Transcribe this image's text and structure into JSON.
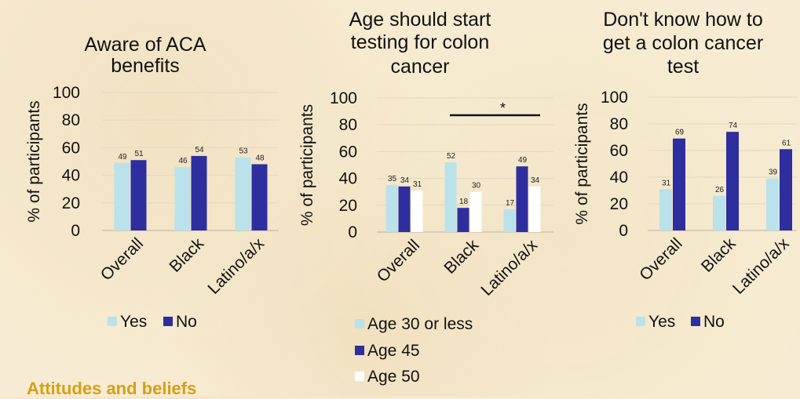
{
  "colors": {
    "yes": "#b9e2ea",
    "no": "#2e2e9f",
    "age30": "#b9e2ea",
    "age45": "#2e2e9f",
    "age50": "#ffffff",
    "background": "#f7ecd3",
    "heading": "#d4a017"
  },
  "section_heading": "Attitudes and beliefs",
  "chart_data": [
    {
      "type": "bar",
      "title": "Aware of ACA benefits",
      "ylabel": "% of participants",
      "ylim": [
        0,
        100
      ],
      "yticks": [
        "0",
        "20",
        "40",
        "60",
        "80",
        "100"
      ],
      "categories": [
        "Overall",
        "Black",
        "Latino/a/x"
      ],
      "series": [
        {
          "name": "Yes",
          "color": "#b9e2ea",
          "values": [
            49,
            46,
            53
          ]
        },
        {
          "name": "No",
          "color": "#2e2e9f",
          "values": [
            51,
            54,
            48
          ]
        }
      ],
      "legend_position": "bottom"
    },
    {
      "type": "bar",
      "title": "Age should start testing for colon cancer",
      "ylabel": "% of participants",
      "ylim": [
        0,
        100
      ],
      "yticks": [
        "0",
        "20",
        "40",
        "60",
        "80",
        "100"
      ],
      "categories": [
        "Overall",
        "Black",
        "Latino/a/x"
      ],
      "series": [
        {
          "name": "Age 30 or less",
          "color": "#b9e2ea",
          "values": [
            35,
            52,
            17
          ]
        },
        {
          "name": "Age 45",
          "color": "#2e2e9f",
          "values": [
            34,
            18,
            49
          ]
        },
        {
          "name": "Age 50",
          "color": "#ffffff",
          "values": [
            31,
            30,
            34
          ]
        }
      ],
      "annotation": "*",
      "legend_position": "bottom"
    },
    {
      "type": "bar",
      "title": "Don't know how to get a colon cancer test",
      "ylabel": "% of participants",
      "ylim": [
        0,
        100
      ],
      "yticks": [
        "0",
        "20",
        "40",
        "60",
        "80",
        "100"
      ],
      "categories": [
        "Overall",
        "Black",
        "Latino/a/x"
      ],
      "series": [
        {
          "name": "Yes",
          "color": "#b9e2ea",
          "values": [
            31,
            26,
            39
          ]
        },
        {
          "name": "No",
          "color": "#2e2e9f",
          "values": [
            69,
            74,
            61
          ]
        }
      ],
      "legend_position": "bottom"
    }
  ]
}
